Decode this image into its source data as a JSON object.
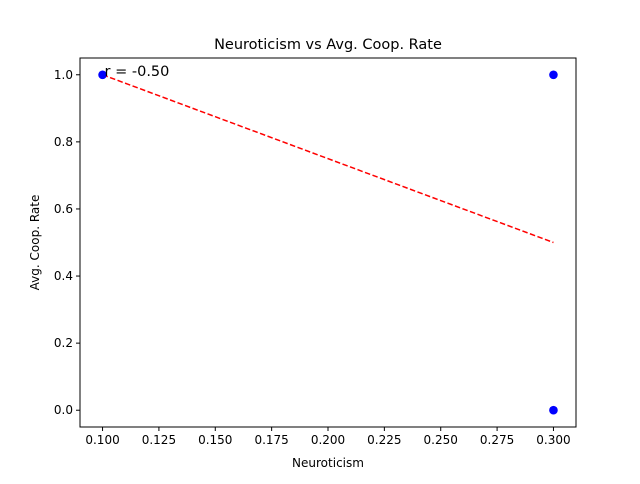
{
  "chart_data": {
    "type": "scatter",
    "title": "Neuroticism vs Avg. Coop. Rate",
    "xlabel": "Neuroticism",
    "ylabel": "Avg. Coop. Rate",
    "xlim": [
      0.09,
      0.31
    ],
    "ylim": [
      -0.05,
      1.05
    ],
    "xticks": [
      0.1,
      0.125,
      0.15,
      0.175,
      0.2,
      0.225,
      0.25,
      0.275,
      0.3
    ],
    "xtick_labels": [
      "0.100",
      "0.125",
      "0.150",
      "0.175",
      "0.200",
      "0.225",
      "0.250",
      "0.275",
      "0.300"
    ],
    "yticks": [
      0.0,
      0.2,
      0.4,
      0.6,
      0.8,
      1.0
    ],
    "ytick_labels": [
      "0.0",
      "0.2",
      "0.4",
      "0.6",
      "0.8",
      "1.0"
    ],
    "grid": false,
    "series": [
      {
        "points": [
          {
            "x": 0.1,
            "y": 1.0
          },
          {
            "x": 0.3,
            "y": 1.0
          },
          {
            "x": 0.3,
            "y": 0.0
          }
        ],
        "color": "#0000ff",
        "marker": "circle"
      }
    ],
    "trendline": {
      "x": [
        0.1,
        0.3
      ],
      "y": [
        1.0,
        0.5
      ],
      "color": "#ff0000",
      "style": "dashed"
    },
    "annotations": [
      {
        "text": "r = -0.50",
        "x": 0.1,
        "y": 1.0
      }
    ]
  }
}
